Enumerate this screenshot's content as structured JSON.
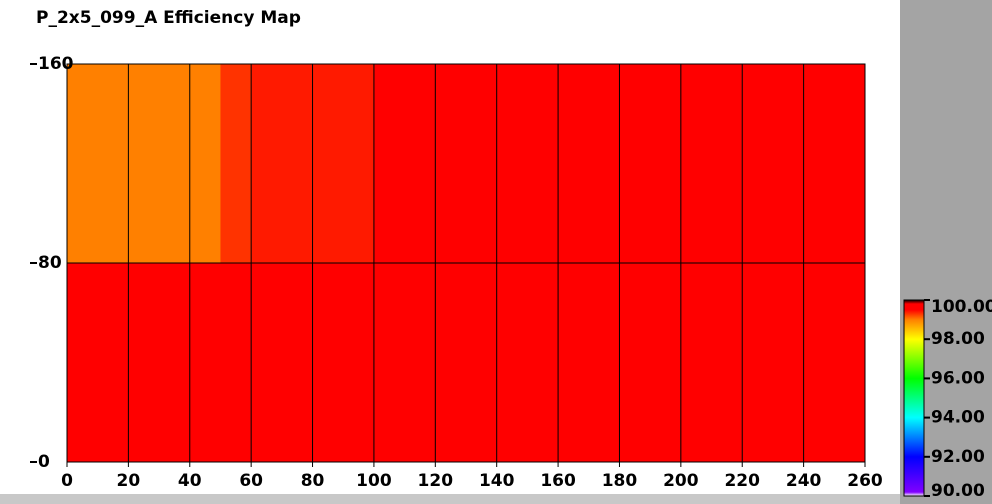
{
  "chart_data": {
    "type": "heatmap",
    "title": "P_2x5_099_A Efficiency Map",
    "xbins": [
      0,
      10,
      20,
      30,
      40,
      50,
      60,
      70,
      80,
      90,
      100,
      110,
      120,
      130,
      140,
      150,
      160,
      170,
      180,
      190,
      200,
      210,
      220,
      230,
      240,
      250,
      260
    ],
    "ybins": [
      0,
      80,
      160
    ],
    "values": [
      [
        99.8,
        99.8,
        99.8,
        99.8,
        99.8,
        99.8,
        99.8,
        99.8,
        99.8,
        99.8,
        99.8,
        99.8,
        99.8,
        99.8,
        99.8,
        99.8,
        99.8,
        99.8,
        99.8,
        99.8,
        99.8,
        99.8,
        99.8,
        99.8,
        99.8,
        99.8
      ],
      [
        99.0,
        99.0,
        99.0,
        99.0,
        99.0,
        99.3,
        99.4,
        99.4,
        99.4,
        99.4,
        99.6,
        99.6,
        99.6,
        99.6,
        99.6,
        99.6,
        99.7,
        99.7,
        99.7,
        99.7,
        99.7,
        99.7,
        99.7,
        99.7,
        99.7,
        99.7
      ]
    ],
    "xlim": [
      0,
      260
    ],
    "ylim": [
      0,
      160
    ],
    "xticks": [
      0,
      20,
      40,
      60,
      80,
      100,
      120,
      140,
      160,
      180,
      200,
      220,
      240,
      260
    ],
    "yticks": [
      0,
      80,
      160
    ],
    "grid": true,
    "clim": [
      90,
      100
    ],
    "cticks": [
      {
        "value": 100,
        "label": "100.00"
      },
      {
        "value": 98,
        "label": "98.00"
      },
      {
        "value": 96,
        "label": "96.00"
      },
      {
        "value": 94,
        "label": "94.00"
      },
      {
        "value": 92,
        "label": "92.00"
      },
      {
        "value": 90,
        "label": "90.00"
      }
    ]
  }
}
